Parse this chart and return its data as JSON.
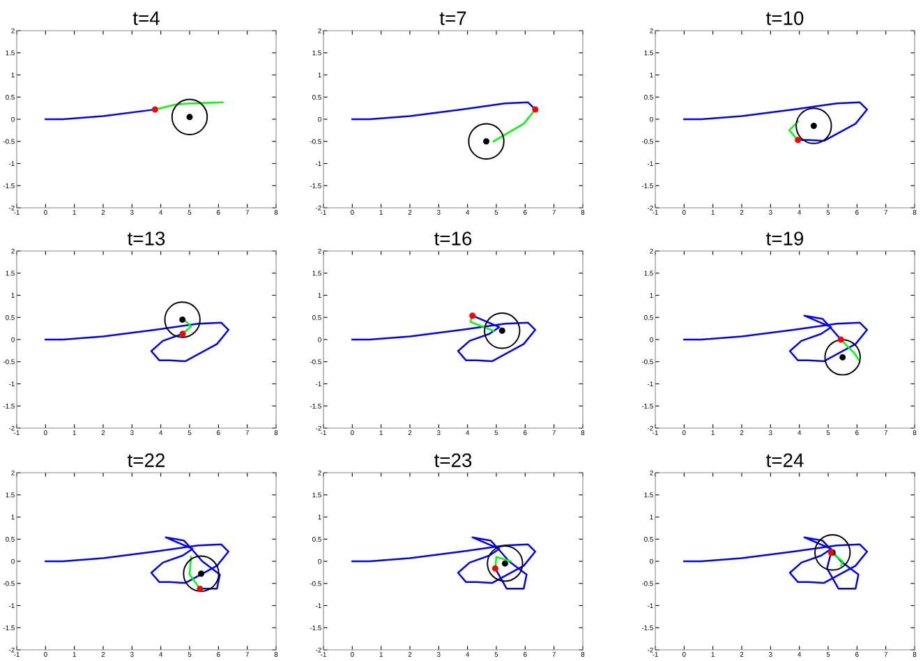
{
  "chart_data": [
    {
      "type": "line",
      "title": "t=4",
      "xlim": [
        -1,
        8
      ],
      "ylim": [
        -2,
        2
      ],
      "xticks": [
        -1,
        0,
        1,
        2,
        3,
        4,
        5,
        6,
        7,
        8
      ],
      "yticks": [
        -2,
        -1.5,
        -1,
        -0.5,
        0,
        0.5,
        1,
        1.5,
        2
      ],
      "grid": false,
      "series": [
        {
          "type": "line",
          "color": "#0000ff",
          "x": [
            0,
            0.6,
            2,
            3.8
          ],
          "values": [
            0,
            0,
            0.07,
            0.22
          ]
        },
        {
          "type": "line",
          "color": "#00ff00",
          "x": [
            3.8,
            4.5,
            5.0,
            6.15
          ],
          "values": [
            0.22,
            0.33,
            0.36,
            0.38
          ]
        },
        {
          "type": "bubble",
          "color": "#000000",
          "x": [
            5.0
          ],
          "values": [
            0.05
          ],
          "sizes": [
            1
          ]
        },
        {
          "type": "scatter",
          "color": "#000000",
          "x": [
            5.0
          ],
          "values": [
            0.05
          ]
        },
        {
          "type": "scatter",
          "color": "#ff0000",
          "x": [
            3.8
          ],
          "values": [
            0.22
          ]
        }
      ]
    },
    {
      "type": "line",
      "title": "t=7",
      "xlim": [
        -1,
        8
      ],
      "ylim": [
        -2,
        2
      ],
      "xticks": [
        -1,
        0,
        1,
        2,
        3,
        4,
        5,
        6,
        7,
        8
      ],
      "yticks": [
        -2,
        -1.5,
        -1,
        -0.5,
        0,
        0.5,
        1,
        1.5,
        2
      ],
      "grid": false,
      "series": [
        {
          "type": "line",
          "color": "#0000ff",
          "x": [
            0,
            0.6,
            2,
            3.8,
            5.3,
            6.1,
            6.35
          ],
          "values": [
            0,
            0,
            0.07,
            0.22,
            0.36,
            0.38,
            0.22
          ]
        },
        {
          "type": "line",
          "color": "#00ff00",
          "x": [
            6.35,
            5.95,
            4.9
          ],
          "values": [
            0.22,
            -0.1,
            -0.5
          ]
        },
        {
          "type": "bubble",
          "color": "#000000",
          "x": [
            4.65
          ],
          "values": [
            -0.5
          ],
          "sizes": [
            1
          ]
        },
        {
          "type": "scatter",
          "color": "#000000",
          "x": [
            4.65
          ],
          "values": [
            -0.5
          ]
        },
        {
          "type": "scatter",
          "color": "#ff0000",
          "x": [
            6.35
          ],
          "values": [
            0.22
          ]
        }
      ]
    },
    {
      "type": "line",
      "title": "t=10",
      "xlim": [
        -1,
        8
      ],
      "ylim": [
        -2,
        2
      ],
      "xticks": [
        -1,
        0,
        1,
        2,
        3,
        4,
        5,
        6,
        7,
        8
      ],
      "yticks": [
        -2,
        -1.5,
        -1,
        -0.5,
        0,
        0.5,
        1,
        1.5,
        2
      ],
      "grid": false,
      "series": [
        {
          "type": "line",
          "color": "#0000ff",
          "x": [
            0,
            0.6,
            2,
            3.8,
            5.3,
            6.1,
            6.35,
            5.95,
            4.85,
            4.3,
            3.95
          ],
          "values": [
            0,
            0,
            0.07,
            0.22,
            0.36,
            0.38,
            0.22,
            -0.1,
            -0.49,
            -0.47,
            -0.47
          ]
        },
        {
          "type": "line",
          "color": "#00ff00",
          "x": [
            3.95,
            3.65,
            3.95
          ],
          "values": [
            -0.47,
            -0.25,
            -0.05
          ]
        },
        {
          "type": "bubble",
          "color": "#000000",
          "x": [
            4.5
          ],
          "values": [
            -0.15
          ],
          "sizes": [
            1
          ]
        },
        {
          "type": "scatter",
          "color": "#000000",
          "x": [
            4.5
          ],
          "values": [
            -0.15
          ]
        },
        {
          "type": "scatter",
          "color": "#ff0000",
          "x": [
            3.95
          ],
          "values": [
            -0.47
          ]
        }
      ]
    },
    {
      "type": "line",
      "title": "t=13",
      "xlim": [
        -1,
        8
      ],
      "ylim": [
        -2,
        2
      ],
      "xticks": [
        -1,
        0,
        1,
        2,
        3,
        4,
        5,
        6,
        7,
        8
      ],
      "yticks": [
        -2,
        -1.5,
        -1,
        -0.5,
        0,
        0.5,
        1,
        1.5,
        2
      ],
      "grid": false,
      "series": [
        {
          "type": "line",
          "color": "#0000ff",
          "x": [
            0,
            0.6,
            2,
            3.8,
            5.3,
            6.1,
            6.35,
            5.95,
            4.85,
            4.3,
            3.95,
            3.67,
            4.07,
            4.76
          ],
          "values": [
            0,
            0,
            0.07,
            0.22,
            0.36,
            0.38,
            0.22,
            -0.1,
            -0.49,
            -0.47,
            -0.47,
            -0.26,
            -0.03,
            0.13
          ]
        },
        {
          "type": "line",
          "color": "#00ff00",
          "x": [
            4.76,
            5.05,
            4.8
          ],
          "values": [
            0.13,
            0.3,
            0.45
          ]
        },
        {
          "type": "bubble",
          "color": "#000000",
          "x": [
            4.75
          ],
          "values": [
            0.45
          ],
          "sizes": [
            1
          ]
        },
        {
          "type": "scatter",
          "color": "#000000",
          "x": [
            4.75
          ],
          "values": [
            0.45
          ]
        },
        {
          "type": "scatter",
          "color": "#ff0000",
          "x": [
            4.76
          ],
          "values": [
            0.13
          ]
        }
      ]
    },
    {
      "type": "line",
      "title": "t=16",
      "xlim": [
        -1,
        8
      ],
      "ylim": [
        -2,
        2
      ],
      "xticks": [
        -1,
        0,
        1,
        2,
        3,
        4,
        5,
        6,
        7,
        8
      ],
      "yticks": [
        -2,
        -1.5,
        -1,
        -0.5,
        0,
        0.5,
        1,
        1.5,
        2
      ],
      "grid": false,
      "series": [
        {
          "type": "line",
          "color": "#0000ff",
          "x": [
            0,
            0.6,
            2,
            3.8,
            5.3,
            6.1,
            6.35,
            5.95,
            4.85,
            4.3,
            3.95,
            3.67,
            4.07,
            4.76,
            5.1,
            4.17
          ],
          "values": [
            0,
            0,
            0.07,
            0.22,
            0.36,
            0.38,
            0.22,
            -0.1,
            -0.49,
            -0.47,
            -0.47,
            -0.26,
            -0.03,
            0.13,
            0.28,
            0.54
          ]
        },
        {
          "type": "line",
          "color": "#00ff00",
          "x": [
            4.17,
            4.1,
            4.9
          ],
          "values": [
            0.54,
            0.4,
            0.2
          ]
        },
        {
          "type": "bubble",
          "color": "#000000",
          "x": [
            5.2
          ],
          "values": [
            0.2
          ],
          "sizes": [
            1
          ]
        },
        {
          "type": "scatter",
          "color": "#000000",
          "x": [
            5.2
          ],
          "values": [
            0.2
          ]
        },
        {
          "type": "scatter",
          "color": "#ff0000",
          "x": [
            4.17
          ],
          "values": [
            0.54
          ]
        }
      ]
    },
    {
      "type": "line",
      "title": "t=19",
      "xlim": [
        -1,
        8
      ],
      "ylim": [
        -2,
        2
      ],
      "xticks": [
        -1,
        0,
        1,
        2,
        3,
        4,
        5,
        6,
        7,
        8
      ],
      "yticks": [
        -2,
        -1.5,
        -1,
        -0.5,
        0,
        0.5,
        1,
        1.5,
        2
      ],
      "grid": false,
      "series": [
        {
          "type": "line",
          "color": "#0000ff",
          "x": [
            0,
            0.6,
            2,
            3.8,
            5.3,
            6.1,
            6.35,
            5.95,
            4.85,
            4.3,
            3.95,
            3.67,
            4.07,
            4.76,
            5.1,
            4.17,
            4.8,
            5.04,
            5.44
          ],
          "values": [
            0,
            0,
            0.07,
            0.22,
            0.36,
            0.38,
            0.22,
            -0.1,
            -0.49,
            -0.47,
            -0.47,
            -0.26,
            -0.03,
            0.13,
            0.28,
            0.54,
            0.47,
            0.3,
            0.0
          ]
        },
        {
          "type": "line",
          "color": "#00ff00",
          "x": [
            5.44,
            5.9,
            6.05
          ],
          "values": [
            0.0,
            -0.3,
            -0.45
          ]
        },
        {
          "type": "bubble",
          "color": "#000000",
          "x": [
            5.5
          ],
          "values": [
            -0.4
          ],
          "sizes": [
            1
          ]
        },
        {
          "type": "scatter",
          "color": "#000000",
          "x": [
            5.5
          ],
          "values": [
            -0.4
          ]
        },
        {
          "type": "scatter",
          "color": "#ff0000",
          "x": [
            5.44
          ],
          "values": [
            0.0
          ]
        }
      ]
    },
    {
      "type": "line",
      "title": "t=22",
      "xlim": [
        -1,
        8
      ],
      "ylim": [
        -2,
        2
      ],
      "xticks": [
        -1,
        0,
        1,
        2,
        3,
        4,
        5,
        6,
        7,
        8
      ],
      "yticks": [
        -2,
        -1.5,
        -1,
        -0.5,
        0,
        0.5,
        1,
        1.5,
        2
      ],
      "grid": false,
      "series": [
        {
          "type": "line",
          "color": "#0000ff",
          "x": [
            0,
            0.6,
            2,
            3.8,
            5.3,
            6.1,
            6.35,
            5.95,
            4.85,
            4.3,
            3.95,
            3.67,
            4.07,
            4.76,
            5.1,
            4.17,
            4.8,
            5.04,
            5.44,
            6.05,
            5.95,
            5.36
          ],
          "values": [
            0,
            0,
            0.07,
            0.22,
            0.36,
            0.38,
            0.22,
            -0.1,
            -0.49,
            -0.47,
            -0.47,
            -0.26,
            -0.03,
            0.13,
            0.28,
            0.54,
            0.47,
            0.3,
            0.0,
            -0.3,
            -0.62,
            -0.62
          ]
        },
        {
          "type": "line",
          "color": "#00ff00",
          "x": [
            5.36,
            5.0,
            5.05
          ],
          "values": [
            -0.62,
            -0.3,
            0.1
          ]
        },
        {
          "type": "bubble",
          "color": "#000000",
          "x": [
            5.4
          ],
          "values": [
            -0.28
          ],
          "sizes": [
            1
          ]
        },
        {
          "type": "scatter",
          "color": "#000000",
          "x": [
            5.4
          ],
          "values": [
            -0.28
          ]
        },
        {
          "type": "scatter",
          "color": "#ff0000",
          "x": [
            5.36
          ],
          "values": [
            -0.62
          ]
        }
      ]
    },
    {
      "type": "line",
      "title": "t=23",
      "xlim": [
        -1,
        8
      ],
      "ylim": [
        -2,
        2
      ],
      "xticks": [
        -1,
        0,
        1,
        2,
        3,
        4,
        5,
        6,
        7,
        8
      ],
      "yticks": [
        -2,
        -1.5,
        -1,
        -0.5,
        0,
        0.5,
        1,
        1.5,
        2
      ],
      "grid": false,
      "series": [
        {
          "type": "line",
          "color": "#0000ff",
          "x": [
            0,
            0.6,
            2,
            3.8,
            5.3,
            6.1,
            6.35,
            5.95,
            4.85,
            4.3,
            3.95,
            3.67,
            4.07,
            4.76,
            5.1,
            4.17,
            4.8,
            5.04,
            5.44,
            6.05,
            5.95,
            5.36,
            4.96
          ],
          "values": [
            0,
            0,
            0.07,
            0.22,
            0.36,
            0.38,
            0.22,
            -0.1,
            -0.49,
            -0.47,
            -0.47,
            -0.26,
            -0.03,
            0.13,
            0.28,
            0.54,
            0.47,
            0.3,
            0.0,
            -0.3,
            -0.62,
            -0.62,
            -0.16
          ]
        },
        {
          "type": "line",
          "color": "#00ff00",
          "x": [
            4.96,
            5.0,
            5.5
          ],
          "values": [
            -0.16,
            0.1,
            0.0
          ]
        },
        {
          "type": "bubble",
          "color": "#000000",
          "x": [
            5.3
          ],
          "values": [
            -0.05
          ],
          "sizes": [
            1
          ]
        },
        {
          "type": "scatter",
          "color": "#000000",
          "x": [
            5.3
          ],
          "values": [
            -0.05
          ]
        },
        {
          "type": "scatter",
          "color": "#ff0000",
          "x": [
            4.96
          ],
          "values": [
            -0.16
          ]
        }
      ]
    },
    {
      "type": "line",
      "title": "t=24",
      "xlim": [
        -1,
        8
      ],
      "ylim": [
        -2,
        2
      ],
      "xticks": [
        -1,
        0,
        1,
        2,
        3,
        4,
        5,
        6,
        7,
        8
      ],
      "yticks": [
        -2,
        -1.5,
        -1,
        -0.5,
        0,
        0.5,
        1,
        1.5,
        2
      ],
      "grid": false,
      "series": [
        {
          "type": "line",
          "color": "#0000ff",
          "x": [
            0,
            0.6,
            2,
            3.8,
            5.3,
            6.1,
            6.35,
            5.95,
            4.85,
            4.3,
            3.95,
            3.67,
            4.07,
            4.76,
            5.1,
            4.17,
            4.8,
            5.04,
            5.44,
            6.05,
            5.95,
            5.36,
            4.96,
            5.1
          ],
          "values": [
            0,
            0,
            0.07,
            0.22,
            0.36,
            0.38,
            0.22,
            -0.1,
            -0.49,
            -0.47,
            -0.47,
            -0.26,
            -0.03,
            0.13,
            0.28,
            0.54,
            0.47,
            0.3,
            0.0,
            -0.3,
            -0.62,
            -0.62,
            -0.16,
            0.2
          ]
        },
        {
          "type": "line",
          "color": "#00ff00",
          "x": [
            5.1,
            5.5,
            5.45
          ],
          "values": [
            0.2,
            0.0,
            -0.1
          ]
        },
        {
          "type": "bubble",
          "color": "#000000",
          "x": [
            5.15
          ],
          "values": [
            0.2
          ],
          "sizes": [
            1
          ]
        },
        {
          "type": "scatter",
          "color": "#000000",
          "x": [
            5.15
          ],
          "values": [
            0.2
          ]
        },
        {
          "type": "scatter",
          "color": "#ff0000",
          "x": [
            5.1
          ],
          "values": [
            0.2
          ]
        }
      ]
    }
  ]
}
